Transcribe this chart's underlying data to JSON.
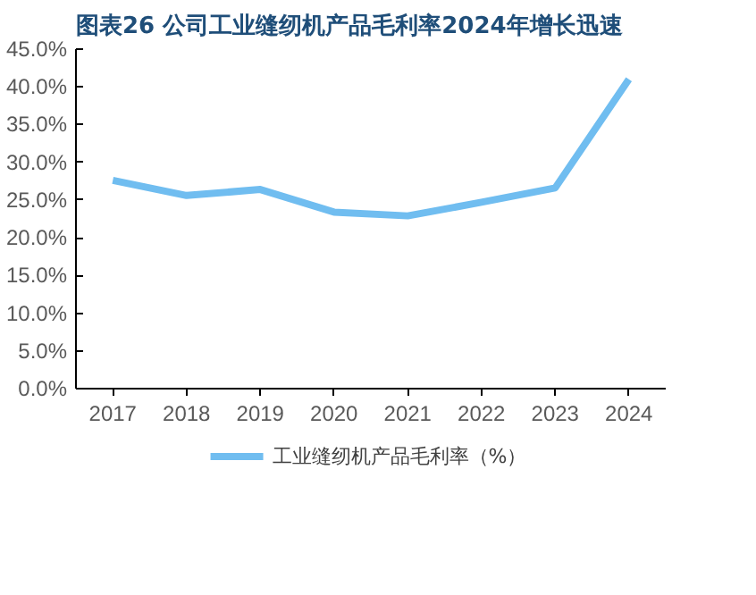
{
  "chart_data": {
    "type": "line",
    "title": "图表26 公司工业缝纫机产品毛利率2024年增长迅速",
    "categories": [
      "2017",
      "2018",
      "2019",
      "2020",
      "2021",
      "2022",
      "2023",
      "2024"
    ],
    "series": [
      {
        "name": "工业缝纫机产品毛利率（%）",
        "color": "#70bdf0",
        "values": [
          27.6,
          25.6,
          26.4,
          23.4,
          22.9,
          24.7,
          26.6,
          41.0
        ]
      }
    ],
    "ylim": [
      0,
      45
    ],
    "yticks": [
      {
        "value": 0,
        "label": "0.0%"
      },
      {
        "value": 5,
        "label": "5.0%"
      },
      {
        "value": 10,
        "label": "10.0%"
      },
      {
        "value": 15,
        "label": "15.0%"
      },
      {
        "value": 20,
        "label": "20.0%"
      },
      {
        "value": 25,
        "label": "25.0%"
      },
      {
        "value": 30,
        "label": "30.0%"
      },
      {
        "value": 35,
        "label": "35.0%"
      },
      {
        "value": 40,
        "label": "40.0%"
      },
      {
        "value": 45,
        "label": "45.0%"
      }
    ],
    "grid": false,
    "legend": "bottom",
    "marker": "none",
    "line_style": "solid"
  }
}
